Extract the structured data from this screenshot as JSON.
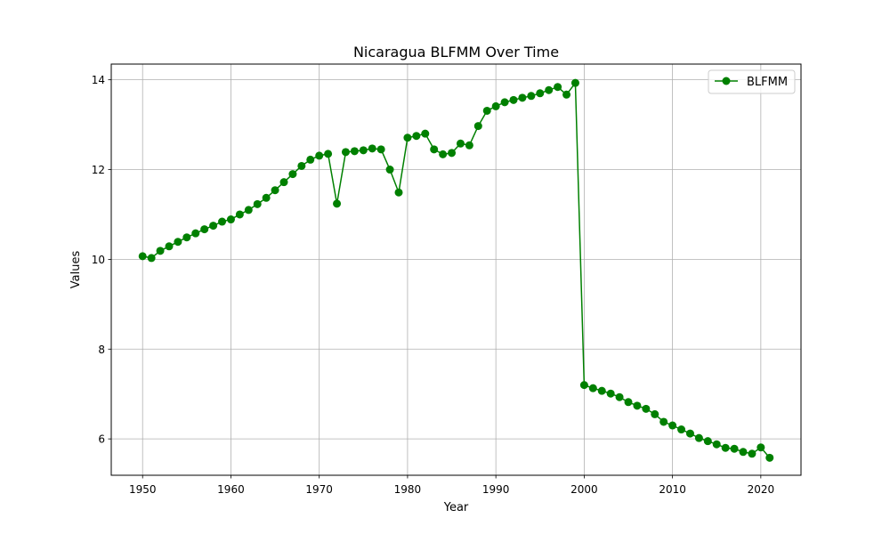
{
  "chart_data": {
    "type": "line",
    "title": "Nicaragua BLFMM Over Time",
    "xlabel": "Year",
    "ylabel": "Values",
    "xlim": [
      1946.45,
      2024.55
    ],
    "ylim": [
      5.19,
      14.35
    ],
    "xticks": [
      1950,
      1960,
      1970,
      1980,
      1990,
      2000,
      2010,
      2020
    ],
    "yticks": [
      6,
      8,
      10,
      12,
      14
    ],
    "grid": true,
    "legend_position": "top-right",
    "series": [
      {
        "name": "BLFMM",
        "color": "#008000",
        "marker": "circle",
        "x": [
          1950,
          1951,
          1952,
          1953,
          1954,
          1955,
          1956,
          1957,
          1958,
          1959,
          1960,
          1961,
          1962,
          1963,
          1964,
          1965,
          1966,
          1967,
          1968,
          1969,
          1970,
          1971,
          1972,
          1973,
          1974,
          1975,
          1976,
          1977,
          1978,
          1979,
          1980,
          1981,
          1982,
          1983,
          1984,
          1985,
          1986,
          1987,
          1988,
          1989,
          1990,
          1991,
          1992,
          1993,
          1994,
          1995,
          1996,
          1997,
          1998,
          1999,
          2000,
          2001,
          2002,
          2003,
          2004,
          2005,
          2006,
          2007,
          2008,
          2009,
          2010,
          2011,
          2012,
          2013,
          2014,
          2015,
          2016,
          2017,
          2018,
          2019,
          2020,
          2021
        ],
        "y": [
          10.07,
          10.03,
          10.19,
          10.29,
          10.39,
          10.49,
          10.58,
          10.67,
          10.75,
          10.84,
          10.89,
          11.0,
          11.1,
          11.23,
          11.37,
          11.54,
          11.72,
          11.9,
          12.08,
          12.22,
          12.31,
          12.35,
          11.24,
          12.39,
          12.41,
          12.43,
          12.47,
          12.45,
          12.0,
          11.49,
          12.71,
          12.75,
          12.8,
          12.45,
          12.34,
          12.37,
          12.58,
          12.54,
          12.97,
          13.31,
          13.41,
          13.5,
          13.55,
          13.6,
          13.64,
          13.7,
          13.77,
          13.84,
          13.67,
          13.93,
          7.2,
          7.13,
          7.07,
          7.01,
          6.93,
          6.82,
          6.74,
          6.67,
          6.55,
          6.38,
          6.3,
          6.21,
          6.12,
          6.02,
          5.95,
          5.88,
          5.8,
          5.78,
          5.71,
          5.67,
          5.81,
          5.58
        ]
      }
    ]
  }
}
